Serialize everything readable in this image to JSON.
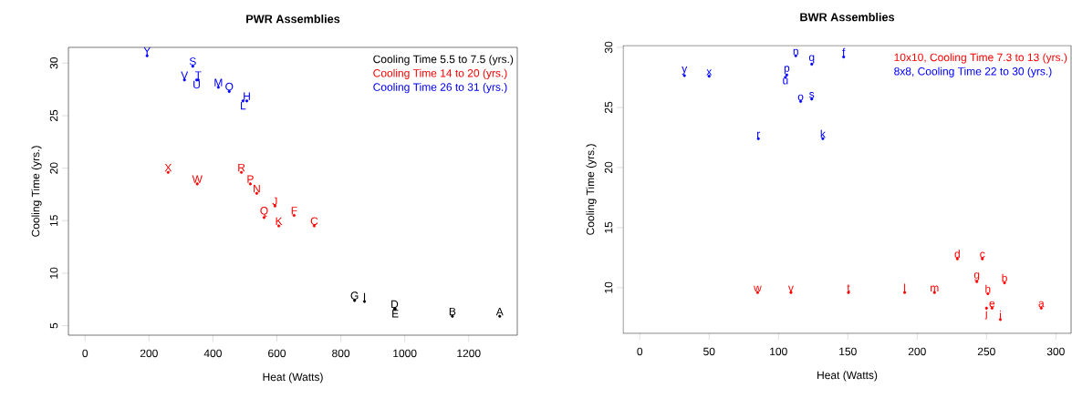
{
  "chart_data": [
    {
      "type": "scatter",
      "title": "PWR Assemblies",
      "xlabel": "Heat (Watts)",
      "ylabel": "Cooling Time (yrs.)",
      "xlim": [
        -52,
        1352
      ],
      "ylim": [
        4.1,
        31.5
      ],
      "xticks": [
        0,
        200,
        400,
        600,
        800,
        1000,
        1200
      ],
      "yticks": [
        5,
        10,
        15,
        20,
        25,
        30
      ],
      "marker": "circle",
      "series": [
        {
          "name": "Cooling Time 5.5 to 7.5 (yrs.)",
          "color": "#000000",
          "x": [
            1297,
            1149,
            968,
            970,
            843,
            874
          ],
          "values": [
            5.9,
            5.9,
            6.6,
            6.6,
            7.4,
            7.3
          ],
          "value_labels": [
            "A",
            "B",
            "D",
            "E",
            "G",
            "I"
          ]
        },
        {
          "name": "Cooling Time 14 to 20 (yrs.)",
          "color": "#ff0000",
          "x": [
            717,
            654,
            594,
            606,
            537,
            517,
            560,
            489,
            351,
            260
          ],
          "values": [
            14.5,
            15.5,
            16.4,
            14.5,
            17.6,
            18.5,
            15.3,
            19.6,
            18.5,
            19.6
          ],
          "value_labels": [
            "C",
            "F",
            "J",
            "K",
            "N",
            "P",
            "Q",
            "R",
            "W",
            "X"
          ]
        },
        {
          "name": "Cooling Time 26 to 31 (yrs.)",
          "color": "#0000ff",
          "x": [
            506,
            494,
            417,
            451,
            337,
            354,
            349,
            311,
            194
          ],
          "values": [
            26.4,
            26.4,
            27.7,
            27.3,
            29.7,
            28.4,
            28.4,
            28.4,
            30.7
          ],
          "value_labels": [
            "H",
            "L",
            "M",
            "O",
            "S",
            "T",
            "U",
            "V",
            "Y"
          ]
        }
      ]
    },
    {
      "type": "scatter",
      "title": "BWR Assemblies",
      "xlabel": "Heat (Watts)",
      "ylabel": "Cooling Time (yrs.)",
      "xlim": [
        -12,
        311
      ],
      "ylim": [
        6.2,
        30.15
      ],
      "xticks": [
        0,
        50,
        100,
        150,
        200,
        250,
        300
      ],
      "yticks": [
        10,
        15,
        20,
        25,
        30
      ],
      "marker": "circle",
      "series": [
        {
          "name": "10x10, Cooling Time 7.3 to 13 (yrs.)",
          "color": "#ff0000",
          "x": [
            289.5,
            263,
            247,
            229,
            254,
            243,
            251,
            260,
            250,
            191,
            212.5,
            150.5,
            109,
            85
          ],
          "values": [
            8.3,
            10.4,
            12.4,
            12.4,
            8.3,
            10.5,
            9.5,
            7.35,
            8.3,
            9.6,
            9.6,
            9.6,
            9.6,
            9.6
          ],
          "value_labels": [
            "a",
            "b",
            "c",
            "d",
            "e",
            "g",
            "h",
            "i",
            "j",
            "l",
            "m",
            "t",
            "v",
            "w"
          ]
        },
        {
          "name": "8x8, Cooling Time 22 to 30 (yrs.)",
          "color": "#0000ff",
          "x": [
            147,
            132,
            112.5,
            116,
            106,
            124,
            85.5,
            124,
            105,
            50,
            32.2
          ],
          "values": [
            29.2,
            22.4,
            29.3,
            25.5,
            27.7,
            28.6,
            22.4,
            25.7,
            27.5,
            27.6,
            27.65
          ],
          "value_labels": [
            "f",
            "k",
            "n",
            "o",
            "p",
            "q",
            "r",
            "s",
            "u",
            "x",
            "y"
          ]
        }
      ]
    }
  ]
}
